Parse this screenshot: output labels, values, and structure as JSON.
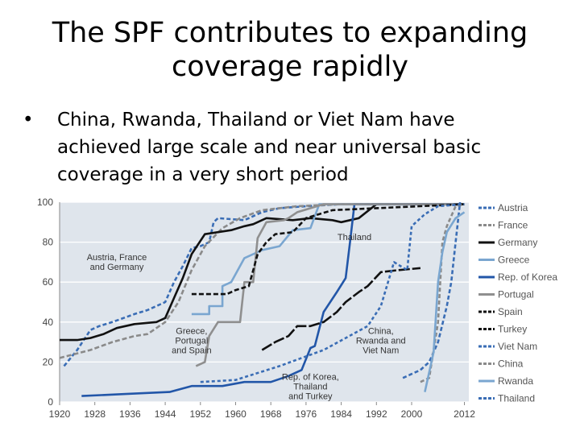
{
  "slide": {
    "title_lines": [
      "The SPF contributes to expanding",
      "coverage rapidly"
    ],
    "bullet_lines": [
      "China, Rwanda, Thailand or Viet Nam have",
      "achieved large scale and near universal basic",
      "coverage in a very short period"
    ]
  },
  "chart_data": {
    "type": "line",
    "x_ticks": [
      "1920",
      "1928",
      "1936",
      "1944",
      "1952",
      "1960",
      "1968",
      "1976",
      "1984",
      "1992",
      "2000",
      "2012"
    ],
    "y_ticks": [
      "0",
      "20",
      "40",
      "60",
      "80",
      "100"
    ],
    "xlim": [
      1920,
      2013
    ],
    "ylim": [
      0,
      100
    ],
    "grid": true,
    "legend_position": "right",
    "annotations": [
      {
        "lines": [
          "Austria, France",
          "and Germany"
        ],
        "x": 1933,
        "y": 71
      },
      {
        "lines": [
          "Greece,",
          "Portugal",
          "and Spain"
        ],
        "x": 1950,
        "y": 34
      },
      {
        "lines": [
          "Rep. of Korea,",
          "Thailand",
          "and Turkey"
        ],
        "x": 1977,
        "y": 11
      },
      {
        "lines": [
          "China,",
          "Rwanda and",
          "Viet Nam"
        ],
        "x": 1993,
        "y": 34
      },
      {
        "lines": [
          "Thailand"
        ],
        "x": 1987,
        "y": 81
      }
    ],
    "series": [
      {
        "name": "Austria",
        "color": "#3a6db5",
        "dash": "5,3",
        "points": [
          [
            1921,
            18
          ],
          [
            1924,
            26
          ],
          [
            1927,
            36
          ],
          [
            1929,
            38
          ],
          [
            1932,
            40
          ],
          [
            1937,
            44
          ],
          [
            1940,
            46
          ],
          [
            1944,
            50
          ],
          [
            1946,
            60
          ],
          [
            1948,
            68
          ],
          [
            1950,
            77
          ],
          [
            1952,
            78
          ],
          [
            1954,
            80
          ],
          [
            1955,
            90
          ],
          [
            1956,
            92
          ],
          [
            1962,
            91
          ],
          [
            1966,
            95
          ],
          [
            1970,
            97
          ],
          [
            1976,
            98
          ],
          [
            1984,
            99
          ],
          [
            1992,
            99
          ],
          [
            2012,
            99
          ]
        ]
      },
      {
        "name": "France",
        "color": "#8a8a8a",
        "dash": "6,3",
        "points": [
          [
            1920,
            22
          ],
          [
            1927,
            26
          ],
          [
            1932,
            30
          ],
          [
            1937,
            33
          ],
          [
            1940,
            34
          ],
          [
            1944,
            40
          ],
          [
            1947,
            50
          ],
          [
            1950,
            66
          ],
          [
            1953,
            78
          ],
          [
            1957,
            87
          ],
          [
            1961,
            92
          ],
          [
            1966,
            96
          ],
          [
            1970,
            97
          ],
          [
            1974,
            98
          ],
          [
            1984,
            99
          ],
          [
            2012,
            99
          ]
        ]
      },
      {
        "name": "Germany",
        "color": "#111111",
        "dash": "",
        "points": [
          [
            1920,
            31
          ],
          [
            1924,
            31
          ],
          [
            1927,
            32
          ],
          [
            1930,
            34
          ],
          [
            1933,
            37
          ],
          [
            1937,
            39
          ],
          [
            1942,
            40
          ],
          [
            1944,
            42
          ],
          [
            1946,
            52
          ],
          [
            1948,
            62
          ],
          [
            1950,
            74
          ],
          [
            1953,
            84
          ],
          [
            1956,
            85
          ],
          [
            1959,
            86
          ],
          [
            1962,
            88
          ],
          [
            1964,
            89
          ],
          [
            1967,
            92
          ],
          [
            1973,
            91
          ],
          [
            1977,
            92
          ],
          [
            1982,
            91
          ],
          [
            1984,
            90
          ],
          [
            1988,
            92
          ],
          [
            1992,
            99
          ],
          [
            2012,
            99
          ]
        ]
      },
      {
        "name": "Greece",
        "color": "#7aa6d0",
        "dash": "",
        "points": [
          [
            1950,
            44
          ],
          [
            1954,
            44
          ],
          [
            1954,
            48
          ],
          [
            1957,
            48
          ],
          [
            1957,
            58
          ],
          [
            1959,
            60
          ],
          [
            1962,
            72
          ],
          [
            1966,
            76
          ],
          [
            1970,
            78
          ],
          [
            1973,
            86
          ],
          [
            1977,
            87
          ],
          [
            1979,
            99
          ],
          [
            2012,
            99
          ]
        ]
      },
      {
        "name": "Rep. of Korea",
        "color": "#2256a8",
        "dash": "",
        "points": [
          [
            1925,
            3
          ],
          [
            1935,
            4
          ],
          [
            1945,
            5
          ],
          [
            1950,
            8
          ],
          [
            1957,
            8
          ],
          [
            1962,
            10
          ],
          [
            1968,
            10
          ],
          [
            1972,
            13
          ],
          [
            1975,
            16
          ],
          [
            1977,
            27
          ],
          [
            1978,
            28
          ],
          [
            1980,
            45
          ],
          [
            1983,
            55
          ],
          [
            1985,
            62
          ],
          [
            1986,
            80
          ],
          [
            1987,
            99
          ],
          [
            2012,
            99
          ]
        ]
      },
      {
        "name": "Portugal",
        "color": "#8f8f8f",
        "dash": "",
        "points": [
          [
            1951,
            18
          ],
          [
            1953,
            20
          ],
          [
            1954,
            33
          ],
          [
            1956,
            40
          ],
          [
            1961,
            40
          ],
          [
            1962,
            60
          ],
          [
            1964,
            60
          ],
          [
            1965,
            82
          ],
          [
            1967,
            90
          ],
          [
            1971,
            91
          ],
          [
            1972,
            92
          ],
          [
            1974,
            95
          ],
          [
            1980,
            99
          ],
          [
            2012,
            99
          ]
        ]
      },
      {
        "name": "Spain",
        "color": "#111111",
        "dash": "6,3",
        "points": [
          [
            1950,
            54
          ],
          [
            1958,
            54
          ],
          [
            1960,
            56
          ],
          [
            1963,
            58
          ],
          [
            1965,
            74
          ],
          [
            1967,
            80
          ],
          [
            1969,
            84
          ],
          [
            1973,
            85
          ],
          [
            1976,
            92
          ],
          [
            1982,
            96
          ],
          [
            2012,
            99
          ]
        ]
      },
      {
        "name": "Turkey",
        "color": "#111111",
        "dash": "14,3",
        "points": [
          [
            1966,
            26
          ],
          [
            1969,
            30
          ],
          [
            1972,
            33
          ],
          [
            1974,
            38
          ],
          [
            1977,
            38
          ],
          [
            1980,
            40
          ],
          [
            1983,
            45
          ],
          [
            1985,
            50
          ],
          [
            1988,
            55
          ],
          [
            1990,
            58
          ],
          [
            1993,
            65
          ],
          [
            1997,
            66
          ],
          [
            2002,
            67
          ]
        ]
      },
      {
        "name": "Viet Nam",
        "color": "#3a6db5",
        "dash": "5,3",
        "points": [
          [
            1998,
            12
          ],
          [
            2002,
            16
          ],
          [
            2004,
            20
          ],
          [
            2006,
            30
          ],
          [
            2008,
            48
          ],
          [
            2009,
            60
          ],
          [
            2010,
            80
          ],
          [
            2011,
            100
          ]
        ]
      },
      {
        "name": "China",
        "color": "#8a8a8a",
        "dash": "5,3",
        "points": [
          [
            2002,
            10
          ],
          [
            2004,
            12
          ],
          [
            2006,
            40
          ],
          [
            2007,
            80
          ],
          [
            2008,
            88
          ],
          [
            2010,
            98
          ],
          [
            2012,
            99
          ]
        ]
      },
      {
        "name": "Rwanda",
        "color": "#7aa6d0",
        "dash": "",
        "points": [
          [
            2003,
            5
          ],
          [
            2005,
            25
          ],
          [
            2006,
            60
          ],
          [
            2007,
            75
          ],
          [
            2008,
            85
          ],
          [
            2010,
            92
          ],
          [
            2012,
            95
          ]
        ]
      },
      {
        "name": "Thailand",
        "color": "#3a6db5",
        "dash": "4,3",
        "points": [
          [
            1952,
            10
          ],
          [
            1960,
            11
          ],
          [
            1970,
            18
          ],
          [
            1975,
            22
          ],
          [
            1980,
            26
          ],
          [
            1985,
            32
          ],
          [
            1990,
            38
          ],
          [
            1993,
            48
          ],
          [
            1996,
            70
          ],
          [
            1999,
            66
          ],
          [
            2000,
            88
          ],
          [
            2003,
            94
          ],
          [
            2006,
            98
          ],
          [
            2012,
            99
          ]
        ]
      }
    ]
  }
}
